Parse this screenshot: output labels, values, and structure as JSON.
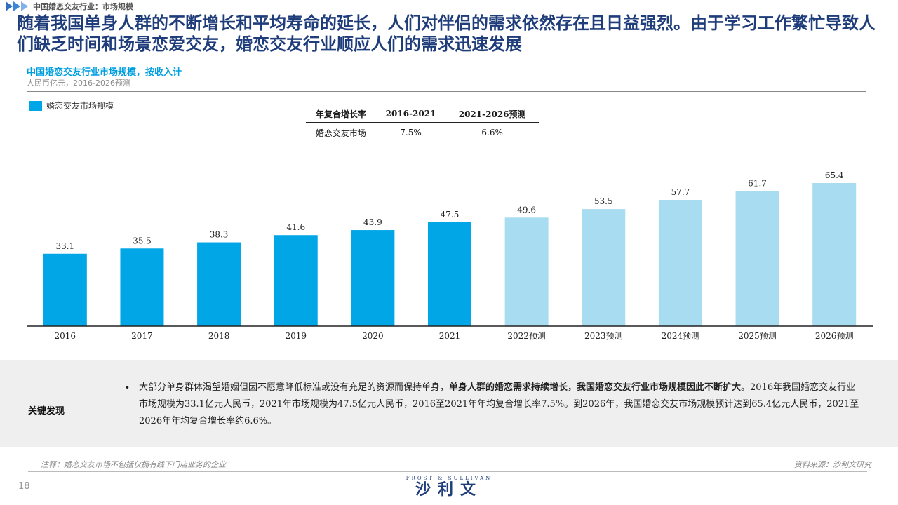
{
  "header": {
    "section_label": "中国婚恋交友行业：市场规模",
    "headline": "随着我国单身人群的不断增长和平均寿命的延长，人们对伴侣的需求依然存在且日益强烈。由于学习工作繁忙导致人们缺乏时间和场景恋爱交友，婚恋交友行业顺应人们的需求迅速发展"
  },
  "cagr_table": {
    "headers": [
      "年复合增长率",
      "2016-2021",
      "2021-2026预测"
    ],
    "row": [
      "婚恋交友市场",
      "7.5%",
      "6.6%"
    ]
  },
  "chart_data": {
    "type": "bar",
    "title": "中国婚恋交友行业市场规模，按收入计",
    "subtitle": "人民币亿元，2016-2026预测",
    "legend": [
      "婚恋交友市场规模"
    ],
    "categories": [
      "2016",
      "2017",
      "2018",
      "2019",
      "2020",
      "2021",
      "2022预测",
      "2023预测",
      "2024预测",
      "2025预测",
      "2026预测"
    ],
    "values": [
      33.1,
      35.5,
      38.3,
      41.6,
      43.9,
      47.5,
      49.6,
      53.5,
      57.7,
      61.7,
      65.4
    ],
    "forecast_from_index": 6,
    "colors": {
      "actual": "#00a6e6",
      "forecast": "#a8dcf1"
    },
    "ylim": [
      0,
      65.4
    ],
    "grid": false
  },
  "findings": {
    "label": "关键发现",
    "text_plain_1": "大部分单身群体渴望婚姻但因不愿意降低标准或没有充足的资源而保持单身，",
    "text_bold": "单身人群的婚恋需求持续增长，我国婚恋交友行业市场规模因此不断扩大",
    "text_plain_2": "。2016年我国婚恋交友行业市场规模为33.1亿元人民币，2021年市场规模为47.5亿元人民币，2016至2021年年均复合增长率7.5%。到2026年，我国婚恋交友市场规模预计达到65.4亿元人民币，2021至2026年年均复合增长率约6.6%。"
  },
  "footer": {
    "note": "注释：婚恋交友市场不包括仅拥有线下门店业务的企业",
    "source": "资料来源：沙利文研究",
    "page_number": "18",
    "logo_en": "FROST & SULLIVAN",
    "logo_cn": "沙利文"
  }
}
